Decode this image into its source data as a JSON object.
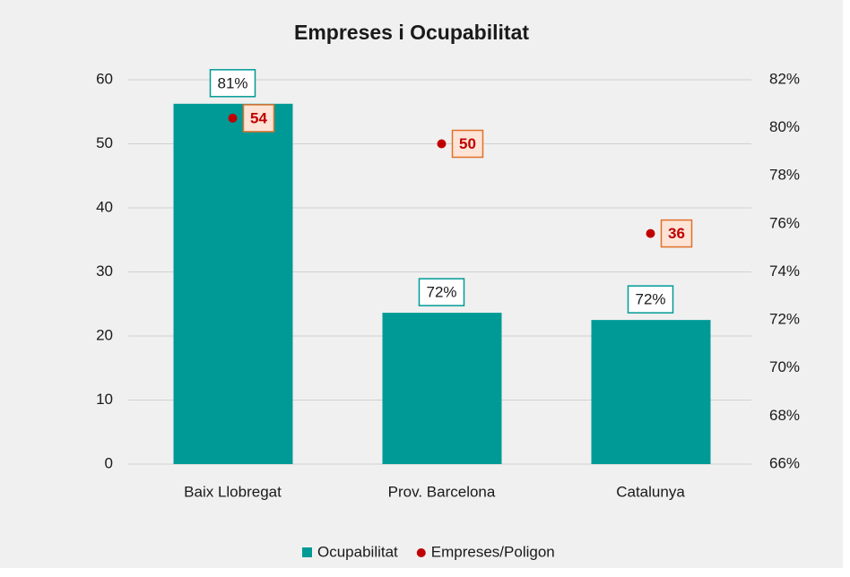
{
  "chart_data": {
    "type": "bar",
    "title": "Empreses i Ocupabilitat",
    "categories": [
      "Baix Llobregat",
      "Prov. Barcelona",
      "Catalunya"
    ],
    "series": [
      {
        "name": "Ocupabilitat",
        "type": "bar",
        "axis": "y2",
        "color": "#009a96",
        "values": [
          81,
          72.3,
          72.0
        ],
        "value_labels": [
          "81%",
          "72%",
          "72%"
        ]
      },
      {
        "name": "Empreses/Poligon",
        "type": "scatter",
        "axis": "y",
        "color": "#c00000",
        "values": [
          54,
          50,
          36
        ]
      }
    ],
    "ylim": [
      0,
      60
    ],
    "yticks": [
      0,
      10,
      20,
      30,
      40,
      50,
      60
    ],
    "y2lim": [
      66,
      82
    ],
    "y2ticks": [
      {
        "value": 66,
        "label": "66%"
      },
      {
        "value": 68,
        "label": "68%"
      },
      {
        "value": 70,
        "label": "70%"
      },
      {
        "value": 72,
        "label": "72%"
      },
      {
        "value": 74,
        "label": "74%"
      },
      {
        "value": 76,
        "label": "76%"
      },
      {
        "value": 78,
        "label": "78%"
      },
      {
        "value": 80,
        "label": "80%"
      },
      {
        "value": 82,
        "label": "82%"
      }
    ],
    "grid": true,
    "legend": "bottom"
  }
}
